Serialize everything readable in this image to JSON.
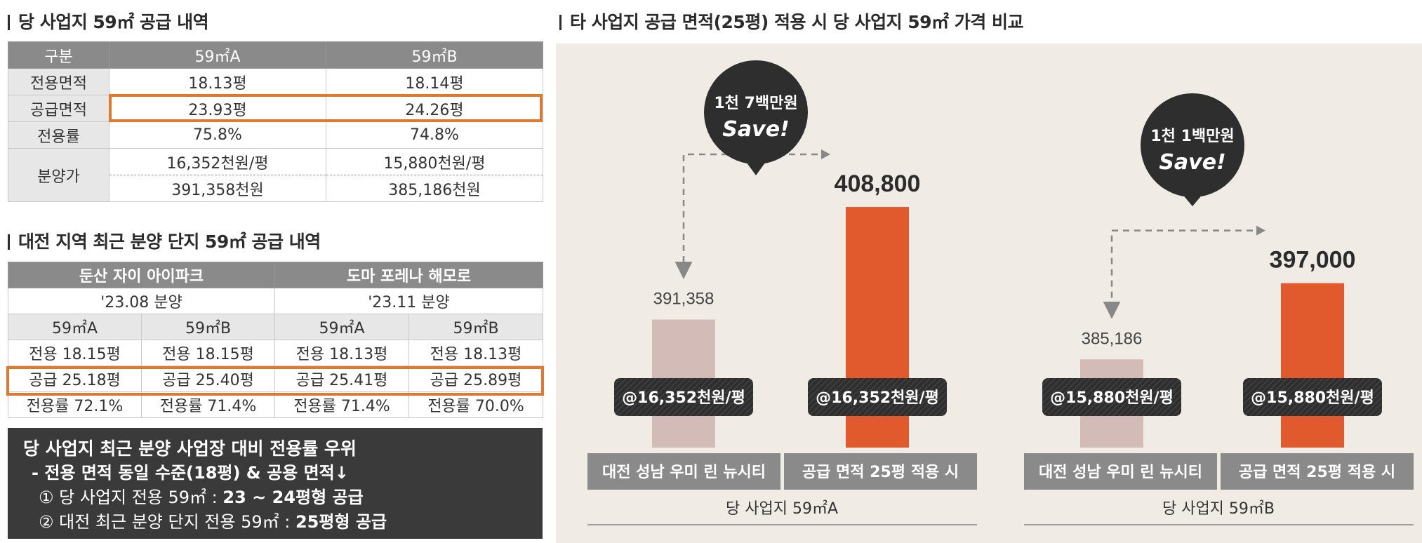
{
  "section1": {
    "title": "당 사업지 59㎡ 공급 내역"
  },
  "table1": {
    "headers": [
      "구분",
      "59㎡A",
      "59㎡B"
    ],
    "rows": [
      {
        "label": "전용면적",
        "a": "18.13평",
        "b": "18.14평"
      },
      {
        "label": "공급면적",
        "a": "23.93평",
        "b": "24.26평"
      },
      {
        "label": "전용률",
        "a": "75.8%",
        "b": "74.8%"
      }
    ],
    "price": {
      "label": "분양가",
      "a_per": "16,352천원/평",
      "b_per": "15,880천원/평",
      "a_total": "391,358천원",
      "b_total": "385,186천원"
    }
  },
  "section2": {
    "title": "대전 지역 최근 분양 단지 59㎡ 공급 내역"
  },
  "table2": {
    "complexes": [
      {
        "name": "둔산 자이 아이파크",
        "date": "'23.08 분양"
      },
      {
        "name": "도마 포레나 해모로",
        "date": "'23.11 분양"
      }
    ],
    "types": [
      "59㎡A",
      "59㎡B",
      "59㎡A",
      "59㎡B"
    ],
    "exclusive": [
      "전용 18.15평",
      "전용 18.15평",
      "전용 18.13평",
      "전용 18.13평"
    ],
    "supply": [
      "공급 25.18평",
      "공급 25.40평",
      "공급 25.41평",
      "공급 25.89평"
    ],
    "ratio": [
      "전용률 72.1%",
      "전용률 71.4%",
      "전용률 71.4%",
      "전용률 70.0%"
    ]
  },
  "summary": {
    "line1": "당 사업지 최근 분양 사업장 대비 전용률 우위",
    "line2": "- 전용 면적 동일 수준(18평) & 공용 면적↓",
    "line3_prefix": "① 당 사업지 전용 59㎡ : ",
    "line3_bold": "23 ~ 24평형 공급",
    "line4_prefix": "② 대전 최근 분양 단지 전용 59㎡ : ",
    "line4_bold": "25평형 공급"
  },
  "section3": {
    "title": "타 사업지 공급 면적(25평) 적용 시 당 사업지 59㎡ 가격 비교"
  },
  "colors": {
    "bar_base": "#d3bcb8",
    "bar_compare": "#e05a2e",
    "highlight_border": "#e0782f",
    "label_bg": "#8a8a8a",
    "bubble": "#2e2e2e",
    "panel_bg": "#f0ebe4"
  },
  "chart_data": [
    {
      "type": "bar",
      "categories": [
        "대전 성남 우미 린 뉴시티",
        "공급 면적 25평 적용 시"
      ],
      "values": [
        391358,
        408800
      ],
      "value_labels": [
        "391,358",
        "408,800"
      ],
      "unit_price_labels": [
        "@16,352천원/평",
        "@16,352천원/평"
      ],
      "xlabel": "당 사업지 59㎡A",
      "bubble": {
        "line1": "1천 7백만원",
        "line2": "Save!"
      }
    },
    {
      "type": "bar",
      "categories": [
        "대전 성남 우미 린 뉴시티",
        "공급 면적 25평 적용 시"
      ],
      "values": [
        385186,
        397000
      ],
      "value_labels": [
        "385,186",
        "397,000"
      ],
      "unit_price_labels": [
        "@15,880천원/평",
        "@15,880천원/평"
      ],
      "xlabel": "당 사업지 59㎡B",
      "bubble": {
        "line1": "1천 1백만원",
        "line2": "Save!"
      }
    }
  ]
}
